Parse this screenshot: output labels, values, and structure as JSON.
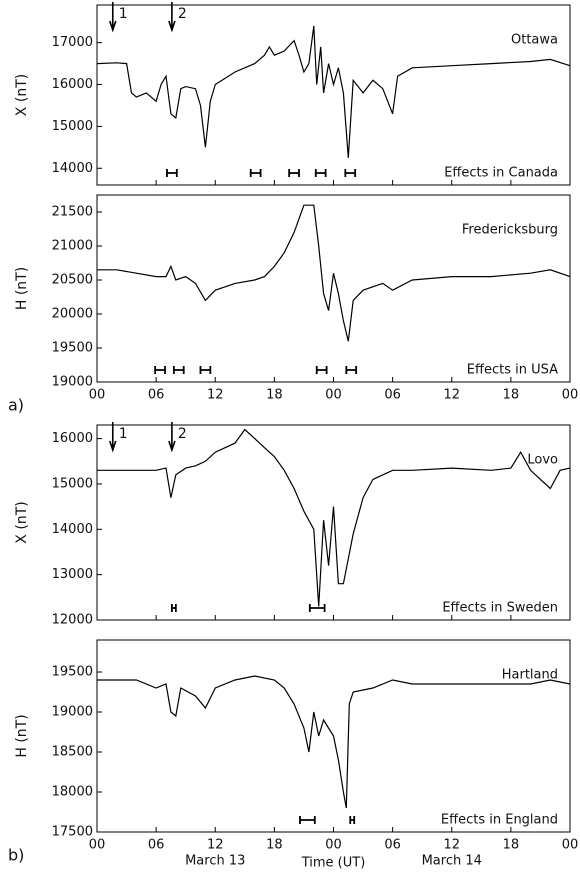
{
  "chart_data": [
    {
      "type": "line",
      "name": "Ottawa",
      "ylabel": "X (nT)",
      "effects_label": "Effects in Canada",
      "xlim": [
        0,
        48
      ],
      "ylim": [
        13600,
        17900
      ],
      "yticks": [
        14000,
        15000,
        16000,
        17000
      ],
      "xticks": [
        {
          "value": 0,
          "label": "00"
        },
        {
          "value": 6,
          "label": "06"
        },
        {
          "value": 12,
          "label": "12"
        },
        {
          "value": 18,
          "label": "18"
        },
        {
          "value": 24,
          "label": "00"
        },
        {
          "value": 30,
          "label": "06"
        },
        {
          "value": 36,
          "label": "12"
        },
        {
          "value": 42,
          "label": "18"
        },
        {
          "value": 48,
          "label": "00"
        }
      ],
      "show_xtick_labels": false,
      "color": "#000000",
      "annotations": [
        {
          "text": "1",
          "x": 1.6
        },
        {
          "text": "2",
          "x": 7.6
        }
      ],
      "effects": [
        [
          7.1,
          8.1
        ],
        [
          15.6,
          16.6
        ],
        [
          19.5,
          20.5
        ],
        [
          22.2,
          23.2
        ],
        [
          25.2,
          26.2
        ]
      ],
      "x": [
        0,
        2,
        3,
        3.5,
        4,
        5,
        6,
        6.5,
        7,
        7.5,
        8,
        8.5,
        9,
        10,
        10.5,
        11,
        11.5,
        12,
        14,
        16,
        17,
        17.5,
        18,
        19,
        20,
        20.5,
        21,
        21.5,
        22,
        22.3,
        22.7,
        23,
        23.5,
        24,
        24.5,
        25,
        25.5,
        26,
        27,
        28,
        29,
        30,
        30.5,
        32,
        36,
        40,
        44,
        46,
        48
      ],
      "values": [
        16500,
        16520,
        16500,
        15800,
        15700,
        15800,
        15600,
        16000,
        16200,
        15300,
        15200,
        15900,
        15950,
        15900,
        15500,
        14500,
        15600,
        16000,
        16300,
        16500,
        16700,
        16900,
        16700,
        16800,
        17050,
        16700,
        16300,
        16500,
        17400,
        16000,
        16900,
        15800,
        16500,
        16000,
        16400,
        15800,
        14250,
        16100,
        15800,
        16100,
        15900,
        15300,
        16200,
        16400,
        16450,
        16500,
        16550,
        16600,
        16450
      ]
    },
    {
      "type": "line",
      "name": "Fredericksburg",
      "ylabel": "H (nT)",
      "effects_label": "Effects in USA",
      "panel_label": "a)",
      "xlim": [
        0,
        48
      ],
      "ylim": [
        19000,
        21750
      ],
      "yticks": [
        19000,
        19500,
        20000,
        20500,
        21000,
        21500
      ],
      "xticks": [
        {
          "value": 0,
          "label": "00"
        },
        {
          "value": 6,
          "label": "06"
        },
        {
          "value": 12,
          "label": "12"
        },
        {
          "value": 18,
          "label": "18"
        },
        {
          "value": 24,
          "label": "00"
        },
        {
          "value": 30,
          "label": "06"
        },
        {
          "value": 36,
          "label": "12"
        },
        {
          "value": 42,
          "label": "18"
        },
        {
          "value": 48,
          "label": "00"
        }
      ],
      "show_xtick_labels": true,
      "color": "#000000",
      "effects": [
        [
          5.9,
          6.9
        ],
        [
          7.8,
          8.8
        ],
        [
          10.5,
          11.5
        ],
        [
          22.3,
          23.3
        ],
        [
          25.3,
          26.3
        ]
      ],
      "x": [
        0,
        2,
        4,
        6,
        7,
        7.5,
        8,
        9,
        10,
        11,
        12,
        14,
        16,
        17,
        18,
        19,
        20,
        21,
        22,
        22.5,
        23,
        23.5,
        24,
        24.5,
        25,
        25.5,
        26,
        27,
        29,
        30,
        32,
        36,
        40,
        44,
        46,
        48
      ],
      "values": [
        20650,
        20650,
        20600,
        20550,
        20550,
        20700,
        20500,
        20550,
        20450,
        20200,
        20350,
        20450,
        20500,
        20550,
        20700,
        20900,
        21200,
        21600,
        21600,
        21000,
        20300,
        20050,
        20600,
        20300,
        19900,
        19600,
        20200,
        20350,
        20450,
        20350,
        20500,
        20550,
        20550,
        20600,
        20650,
        20550
      ]
    },
    {
      "type": "line",
      "name": "Lovo",
      "ylabel": "X (nT)",
      "effects_label": "Effects in Sweden",
      "xlim": [
        0,
        48
      ],
      "ylim": [
        12000,
        16300
      ],
      "yticks": [
        12000,
        13000,
        14000,
        15000,
        16000
      ],
      "xticks": [
        {
          "value": 0,
          "label": "00"
        },
        {
          "value": 6,
          "label": "06"
        },
        {
          "value": 12,
          "label": "12"
        },
        {
          "value": 18,
          "label": "18"
        },
        {
          "value": 24,
          "label": "00"
        },
        {
          "value": 30,
          "label": "06"
        },
        {
          "value": 36,
          "label": "12"
        },
        {
          "value": 42,
          "label": "18"
        },
        {
          "value": 48,
          "label": "00"
        }
      ],
      "show_xtick_labels": false,
      "color": "#000000",
      "annotations": [
        {
          "text": "1",
          "x": 1.6
        },
        {
          "text": "2",
          "x": 7.6
        }
      ],
      "effects": [
        [
          7.6,
          8.0
        ],
        [
          21.6,
          23.1
        ]
      ],
      "x": [
        0,
        4,
        6,
        7,
        7.5,
        8,
        9,
        10,
        11,
        12,
        13,
        14,
        15,
        16,
        17,
        18,
        19,
        20,
        21,
        22,
        22.5,
        23,
        23.5,
        24,
        24.5,
        25,
        26,
        27,
        28,
        30,
        32,
        36,
        40,
        42,
        43,
        44,
        45,
        46,
        47,
        48
      ],
      "values": [
        15300,
        15300,
        15300,
        15350,
        14700,
        15200,
        15350,
        15400,
        15500,
        15700,
        15800,
        15900,
        16200,
        16000,
        15800,
        15600,
        15300,
        14900,
        14400,
        14000,
        12300,
        14200,
        13200,
        14500,
        12800,
        12800,
        13900,
        14700,
        15100,
        15300,
        15300,
        15350,
        15300,
        15350,
        15700,
        15300,
        15100,
        14900,
        15300,
        15350
      ]
    },
    {
      "type": "line",
      "name": "Hartland",
      "ylabel": "H (nT)",
      "effects_label": "Effects in England",
      "panel_label": "b)",
      "xlabel": "Time (UT)",
      "date_labels": [
        {
          "value": 12,
          "label": "March 13"
        },
        {
          "value": 36,
          "label": "March 14"
        }
      ],
      "xlim": [
        0,
        48
      ],
      "ylim": [
        17500,
        19900
      ],
      "yticks": [
        17500,
        18000,
        18500,
        19000,
        19500
      ],
      "xticks": [
        {
          "value": 0,
          "label": "00"
        },
        {
          "value": 6,
          "label": "06"
        },
        {
          "value": 12,
          "label": "12"
        },
        {
          "value": 18,
          "label": "18"
        },
        {
          "value": 24,
          "label": "00"
        },
        {
          "value": 30,
          "label": "06"
        },
        {
          "value": 36,
          "label": "12"
        },
        {
          "value": 42,
          "label": "18"
        },
        {
          "value": 48,
          "label": "00"
        }
      ],
      "show_xtick_labels": true,
      "color": "#000000",
      "effects": [
        [
          20.6,
          22.1
        ],
        [
          25.7,
          26.1
        ]
      ],
      "x": [
        0,
        4,
        6,
        7,
        7.5,
        8,
        8.5,
        10,
        11,
        12,
        14,
        16,
        18,
        19,
        20,
        21,
        21.5,
        22,
        22.5,
        23,
        24,
        24.5,
        25,
        25.3,
        25.6,
        26,
        28,
        30,
        32,
        36,
        40,
        44,
        46,
        48
      ],
      "values": [
        19400,
        19400,
        19300,
        19350,
        19000,
        18950,
        19300,
        19200,
        19050,
        19300,
        19400,
        19450,
        19400,
        19300,
        19100,
        18800,
        18500,
        19000,
        18700,
        18900,
        18700,
        18400,
        18000,
        17800,
        19100,
        19250,
        19300,
        19400,
        19350,
        19350,
        19350,
        19350,
        19400,
        19350
      ]
    }
  ]
}
